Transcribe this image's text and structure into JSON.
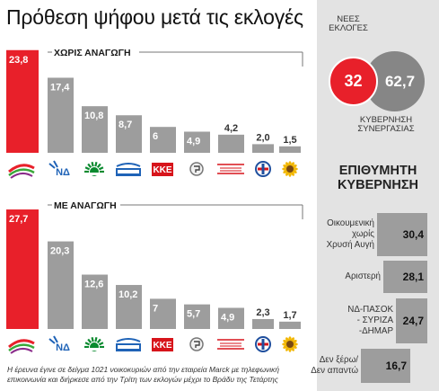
{
  "title": "Πρόθεση ψήφου μετά τις εκλογές",
  "chart_data": [
    {
      "type": "bar",
      "title": "ΧΩΡΙΣ ΑΝΑΓΩΓΗ",
      "categories": [
        "ΣΥΡΙΖΑ",
        "ΝΔ",
        "ΠΑΣΟΚ",
        "ΑΝΕΞΑΡΤΗΤΟΙ ΕΛΛΗΝΕΣ",
        "ΚΚΕ",
        "ΧΡΥΣΗ ΑΥΓΗ",
        "ΔΗΜΟΚΡΑΤΙΚΗ ΑΡΙΣΤΕΡΑ",
        "ΛΑΟΣ",
        "ΟΙΚΟΛΟΓΟΙ ΠΡΑΣΙΝΟΙ"
      ],
      "values": [
        23.8,
        17.4,
        10.8,
        8.7,
        6,
        4.9,
        4.2,
        2.0,
        1.5
      ],
      "value_labels": [
        "23,8",
        "17,4",
        "10,8",
        "8,7",
        "6",
        "4,9",
        "4,2",
        "2,0",
        "1,5"
      ],
      "highlight_color": "#e8202a",
      "bar_color": "#9d9d9d"
    },
    {
      "type": "bar",
      "title": "ΜΕ ΑΝΑΓΩΓΗ",
      "categories": [
        "ΣΥΡΙΖΑ",
        "ΝΔ",
        "ΠΑΣΟΚ",
        "ΑΝΕΞΑΡΤΗΤΟΙ ΕΛΛΗΝΕΣ",
        "ΚΚΕ",
        "ΧΡΥΣΗ ΑΥΓΗ",
        "ΔΗΜΟΚΡΑΤΙΚΗ ΑΡΙΣΤΕΡΑ",
        "ΛΑΟΣ",
        "ΟΙΚΟΛΟΓΟΙ ΠΡΑΣΙΝΟΙ"
      ],
      "values": [
        27.7,
        20.3,
        12.6,
        10.2,
        7,
        5.7,
        4.9,
        2.3,
        1.7
      ],
      "value_labels": [
        "27,7",
        "20,3",
        "12,6",
        "10,2",
        "7",
        "5,7",
        "4,9",
        "2,3",
        "1,7"
      ],
      "highlight_color": "#e8202a",
      "bar_color": "#9d9d9d"
    },
    {
      "type": "pie",
      "categories": [
        "ΝΕΕΣ ΕΚΛΟΓΕΣ",
        "ΚΥΒΕΡΝΗΣΗ ΣΥΝΕΡΓΑΣΙΑΣ"
      ],
      "values": [
        32,
        62.7
      ],
      "value_labels": [
        "32",
        "62,7"
      ]
    },
    {
      "type": "bar",
      "title": "ΕΠΙΘΥΜΗΤΗ ΚΥΒΕΡΝΗΣΗ",
      "categories": [
        "Οικουμενική χωρίς Χρυσή Αυγή",
        "Αριστερή",
        "ΝΔ-ΠΑΣΟΚ - ΣΥΡΙΖΑ -ΔΗΜΑΡ",
        "Δεν ξέρω/ Δεν απαντώ"
      ],
      "values": [
        30.4,
        28.1,
        24.7,
        16.7
      ],
      "value_labels": [
        "30,4",
        "28,1",
        "24,7",
        "16,7"
      ]
    }
  ],
  "logos": {
    "syriza": "ΣΥΡΙΖΑ",
    "nd": "ΝΔ",
    "pasok": "ΠΑΣΟΚ",
    "anel": "ΑΝΕΞΑΡΤΗΤΟΙ ΕΛΛΗΝΕΣ",
    "kke": "ΚΚΕ",
    "xa": "ΧΡΥΣΗ ΑΥΓΗ",
    "dimar": "ΔΗΜΟΚΡΑΤΙΚΗ ΑΡΙΣΤΕΡΑ",
    "laos": "ΛΑΟΣ",
    "prasinoi": "ΟΙΚΟΛΟΓΟΙ ΠΡΑΣΙΝΟΙ"
  },
  "circles": {
    "new_label_1": "ΝΕΕΣ",
    "new_label_2": "ΕΚΛΟΓΕΣ",
    "gov_label_1": "ΚΥΒΕΡΝΗΣΗ",
    "gov_label_2": "ΣΥΝΕΡΓΑΣΙΑΣ",
    "new_value": "32",
    "gov_value": "62,7"
  },
  "preferred": {
    "heading_1": "ΕΠΙΘΥΜΗΤΗ",
    "heading_2": "ΚΥΒΕΡΝΗΣΗ",
    "items": [
      {
        "label_lines": [
          "Οικουμενική",
          "χωρίς",
          "Χρυσή Αυγή"
        ],
        "value": "30,4"
      },
      {
        "label_lines": [
          "Αριστερή"
        ],
        "value": "28,1"
      },
      {
        "label_lines": [
          "ΝΔ-ΠΑΣΟΚ",
          "- ΣΥΡΙΖΑ",
          "-ΔΗΜΑΡ"
        ],
        "value": "24,7"
      },
      {
        "label_lines": [
          "Δεν ξέρω/",
          "Δεν απαντώ"
        ],
        "value": "16,7"
      }
    ]
  },
  "note": "Η έρευνα έγινε σε δείγμα 1021 νοικοκυριών από την εταιρεία Marck με τηλεφωνική επικοινωνία και διήρκεσε από την Τρίτη των εκλογών μέχρι το Βράδυ της Τετάρτης",
  "colors": {
    "red": "#e8202a",
    "gray": "#9d9d9d",
    "side_bg": "#e3e3e3"
  }
}
